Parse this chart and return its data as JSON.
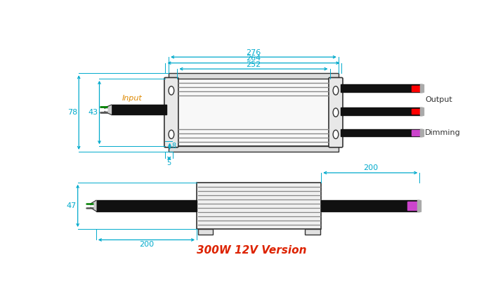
{
  "title": "300W 12V Version",
  "title_color": "#dd2200",
  "title_fontsize": 11,
  "dim_color": "#00aacc",
  "outline_color": "#333333",
  "fin_color": "#999999",
  "bg_color": "#ffffff",
  "wire_black": "#111111",
  "top_view": {
    "input_label": "Input",
    "output_label": "Output",
    "dimming_label": "Dimming"
  },
  "dims_top": {
    "d276": "276",
    "d264": "264",
    "d252": "252",
    "d78": "78",
    "d43": "43",
    "d8": "8",
    "d5": "5"
  },
  "dims_side": {
    "d47": "47",
    "d200L": "200",
    "d200R": "200"
  }
}
